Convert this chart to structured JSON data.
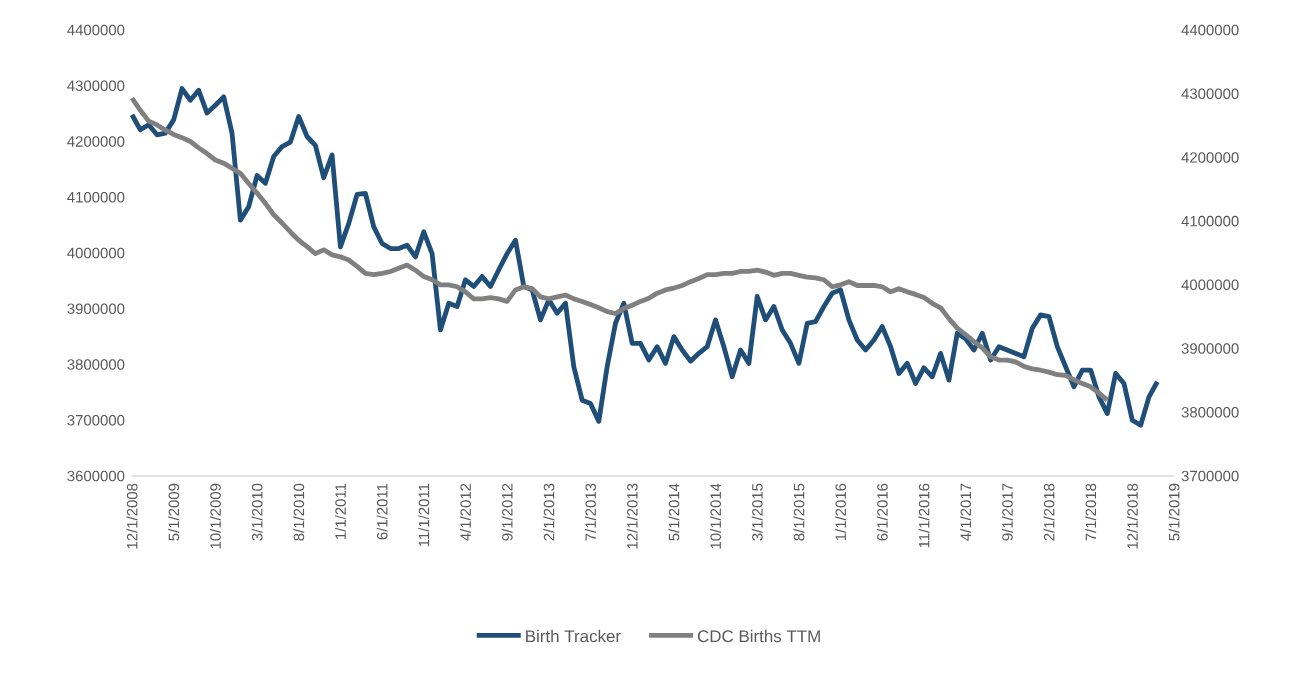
{
  "chart_data": {
    "type": "line",
    "categories": [
      "12/1/2008",
      null,
      null,
      null,
      null,
      "5/1/2009",
      null,
      null,
      null,
      null,
      "10/1/2009",
      null,
      null,
      null,
      null,
      "3/1/2010",
      null,
      null,
      null,
      null,
      "8/1/2010",
      null,
      null,
      null,
      null,
      "1/1/2011",
      null,
      null,
      null,
      null,
      "6/1/2011",
      null,
      null,
      null,
      null,
      "11/1/2011",
      null,
      null,
      null,
      null,
      "4/1/2012",
      null,
      null,
      null,
      null,
      "9/1/2012",
      null,
      null,
      null,
      null,
      "2/1/2013",
      null,
      null,
      null,
      null,
      "7/1/2013",
      null,
      null,
      null,
      null,
      "12/1/2013",
      null,
      null,
      null,
      null,
      "5/1/2014",
      null,
      null,
      null,
      null,
      "10/1/2014",
      null,
      null,
      null,
      null,
      "3/1/2015",
      null,
      null,
      null,
      null,
      "8/1/2015",
      null,
      null,
      null,
      null,
      "1/1/2016",
      null,
      null,
      null,
      null,
      "6/1/2016",
      null,
      null,
      null,
      null,
      "11/1/2016",
      null,
      null,
      null,
      null,
      "4/1/2017",
      null,
      null,
      null,
      null,
      "9/1/2017",
      null,
      null,
      null,
      null,
      "2/1/2018",
      null,
      null,
      null,
      null,
      "7/1/2018",
      null,
      null,
      null,
      null,
      "12/1/2018",
      null,
      null,
      null,
      null,
      "5/1/2019"
    ],
    "series": [
      {
        "name": "Birth Tracker",
        "color": "#1f4e79",
        "values": [
          4248000,
          4221000,
          4230000,
          4212000,
          4215000,
          4239000,
          4295000,
          4274000,
          4292000,
          4251000,
          4265000,
          4280000,
          4215000,
          4059000,
          4083000,
          4139000,
          4125000,
          4173000,
          4191000,
          4199000,
          4245000,
          4209000,
          4193000,
          4135000,
          4176000,
          4011000,
          4053000,
          4105000,
          4107000,
          4047000,
          4017000,
          4008000,
          4008000,
          4014000,
          3993000,
          4038000,
          3999000,
          3862000,
          3910000,
          3904000,
          3952000,
          3940000,
          3958000,
          3940000,
          3970000,
          3999000,
          4023000,
          3940000,
          3934000,
          3880000,
          3916000,
          3892000,
          3910000,
          3796000,
          3736000,
          3730000,
          3698000,
          3796000,
          3874000,
          3910000,
          3838000,
          3838000,
          3808000,
          3832000,
          3802000,
          3850000,
          3826000,
          3806000,
          3820000,
          3832000,
          3880000,
          3832000,
          3778000,
          3826000,
          3802000,
          3922000,
          3880000,
          3904000,
          3862000,
          3838000,
          3802000,
          3874000,
          3877000,
          3904000,
          3928000,
          3934000,
          3880000,
          3844000,
          3826000,
          3844000,
          3868000,
          3832000,
          3784000,
          3802000,
          3766000,
          3794000,
          3778000,
          3820000,
          3772000,
          3856000,
          3846000,
          3826000,
          3856000,
          3808000,
          3832000,
          3826000,
          3820000,
          3814000,
          3865000,
          3889000,
          3886000,
          3832000,
          3796000,
          3760000,
          3790000,
          3790000,
          3742000,
          3712000,
          3784000,
          3766000,
          3700000,
          3691000,
          3742000,
          3769000,
          null,
          null
        ]
      },
      {
        "name": "CDC Births TTM",
        "color": "#808080",
        "axis": "y2",
        "values": [
          4293000,
          4274000,
          4257000,
          4251000,
          4243000,
          4236000,
          4231000,
          4225000,
          4215000,
          4206000,
          4196000,
          4191000,
          4183000,
          4175000,
          4159000,
          4144000,
          4128000,
          4110000,
          4097000,
          4083000,
          4070000,
          4060000,
          4049000,
          4055000,
          4047000,
          4044000,
          4039000,
          4029000,
          4018000,
          4016000,
          4018000,
          4021000,
          4026000,
          4031000,
          4023000,
          4013000,
          4008000,
          4000000,
          4000000,
          3997000,
          3989000,
          3978000,
          3978000,
          3980000,
          3978000,
          3974000,
          3992000,
          3997000,
          3994000,
          3981000,
          3978000,
          3981000,
          3984000,
          3978000,
          3974000,
          3969000,
          3964000,
          3958000,
          3955000,
          3963000,
          3968000,
          3974000,
          3979000,
          3987000,
          3992000,
          3995000,
          3999000,
          4005000,
          4010000,
          4016000,
          4016000,
          4018000,
          4018000,
          4021000,
          4021000,
          4023000,
          4020000,
          4015000,
          4018000,
          4018000,
          4015000,
          4012000,
          4011000,
          4008000,
          3997000,
          4000000,
          4005000,
          3999000,
          3999000,
          3999000,
          3997000,
          3989000,
          3994000,
          3989000,
          3985000,
          3980000,
          3971000,
          3964000,
          3947000,
          3932000,
          3922000,
          3911000,
          3901000,
          3887000,
          3882000,
          3882000,
          3879000,
          3872000,
          3868000,
          3866000,
          3863000,
          3859000,
          3858000,
          3851000,
          3845000,
          3840000,
          3830000,
          3819000,
          null,
          null,
          null,
          null,
          null,
          null,
          null,
          null
        ]
      }
    ],
    "ylim": [
      3600000,
      4400000
    ],
    "yticks": [
      3600000,
      3700000,
      3800000,
      3900000,
      4000000,
      4100000,
      4200000,
      4300000,
      4400000
    ],
    "y2lim": [
      3700000,
      4400000
    ],
    "y2ticks": [
      3700000,
      3800000,
      3900000,
      4000000,
      4100000,
      4200000,
      4300000,
      4400000
    ],
    "legend": "bottom"
  }
}
